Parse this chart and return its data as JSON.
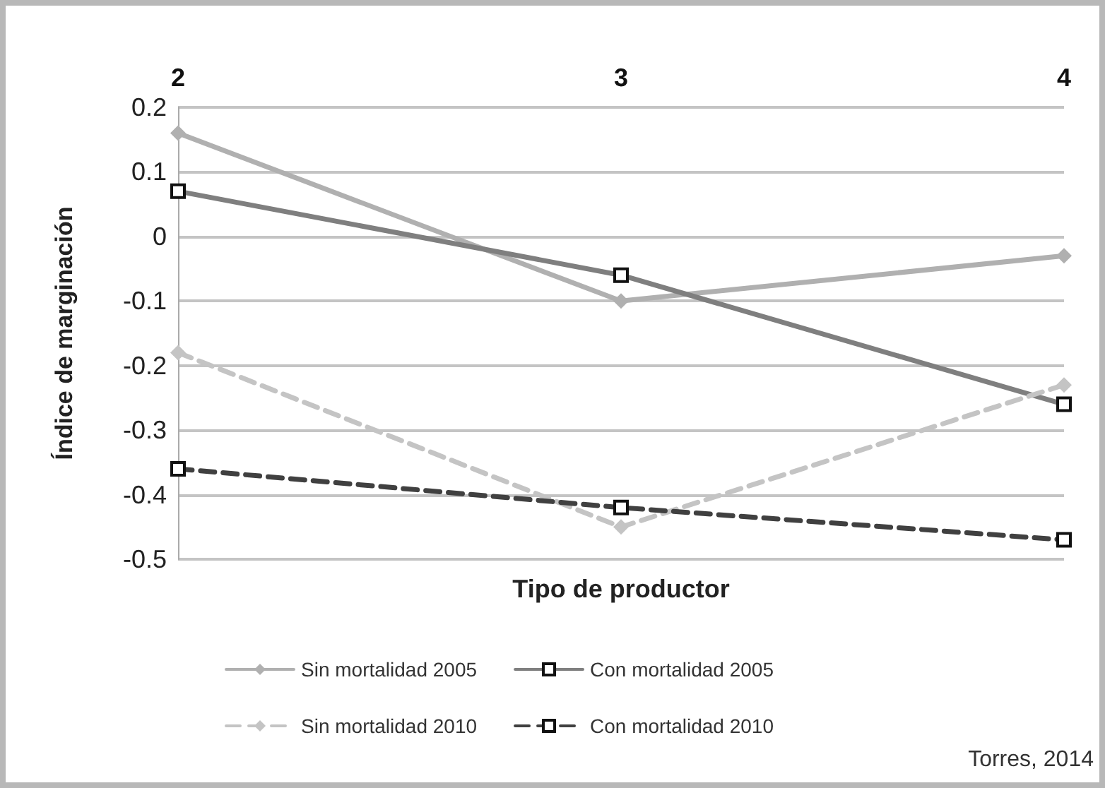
{
  "chart_data": {
    "type": "line",
    "xlabel": "Tipo de productor",
    "ylabel": "Índice de marginación",
    "categories": [
      "2",
      "3",
      "4"
    ],
    "series": [
      {
        "name": "Sin mortalidad 2005",
        "color": "#b0b0b0",
        "marker": "diamond",
        "line_style": "solid",
        "values": [
          0.16,
          -0.1,
          -0.03
        ]
      },
      {
        "name": "Con mortalidad 2005",
        "color": "#7f7f7f",
        "marker": "square",
        "line_style": "solid",
        "values": [
          0.07,
          -0.06,
          -0.26
        ]
      },
      {
        "name": "Sin mortalidad 2010",
        "color": "#c4c4c4",
        "marker": "diamond",
        "line_style": "dashed",
        "values": [
          -0.18,
          -0.45,
          -0.23
        ]
      },
      {
        "name": "Con mortalidad 2010",
        "color": "#404040",
        "marker": "square",
        "line_style": "dashed",
        "values": [
          -0.36,
          -0.42,
          -0.47
        ]
      }
    ],
    "ylim": [
      -0.5,
      0.2
    ],
    "yticks": [
      -0.5,
      -0.4,
      -0.3,
      -0.2,
      -0.1,
      0,
      0.1,
      0.2
    ],
    "grid": "y",
    "legend": "bottom",
    "annotations": [
      "Torres, 2014"
    ]
  }
}
